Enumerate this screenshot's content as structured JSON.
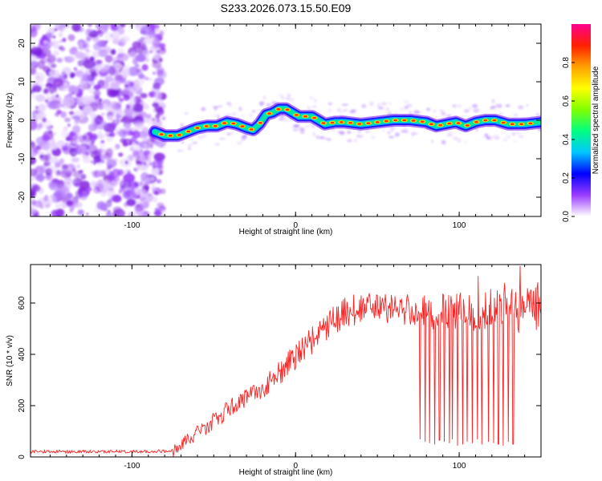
{
  "title": "S233.2026.073.15.50.E09",
  "chart_data": [
    {
      "type": "heatmap",
      "xlabel": "Height of straight line (km)",
      "ylabel": "Frequency (Hz)",
      "xlim": [
        -162,
        150
      ],
      "ylim": [
        -25,
        25
      ],
      "xticks": [
        -100,
        0,
        100
      ],
      "yticks": [
        -20,
        -10,
        0,
        10,
        20
      ],
      "xtick_labels": [
        "-100",
        "0",
        "100"
      ],
      "ytick_labels": [
        "-20",
        "-10",
        "0",
        "10",
        "20"
      ],
      "noise_region_x": [
        -162,
        -80
      ],
      "ridge": {
        "x": [
          -86,
          -80,
          -72,
          -66,
          -60,
          -54,
          -48,
          -42,
          -36,
          -30,
          -26,
          -22,
          -18,
          -14,
          -10,
          -6,
          -2,
          2,
          6,
          10,
          14,
          18,
          24,
          30,
          40,
          50,
          60,
          70,
          80,
          86,
          92,
          98,
          104,
          110,
          116,
          122,
          130,
          140,
          150
        ],
        "freq": [
          -3,
          -4,
          -4,
          -3,
          -2,
          -1.5,
          -1.5,
          -0.5,
          -1,
          -2,
          -2.5,
          -1,
          1.5,
          2,
          3,
          3,
          2,
          1,
          1,
          1,
          0,
          -1,
          -0.5,
          -0.5,
          -1,
          -0.5,
          0,
          0,
          -0.5,
          -1.5,
          -1,
          -0.5,
          -1.5,
          -0.5,
          0,
          0,
          -1,
          -1,
          -0.5
        ]
      },
      "colorbar": {
        "label": "Normalized spectral amplitude",
        "range": [
          0,
          1
        ],
        "ticks": [
          "0.0",
          "0.2",
          "0.4",
          "0.6",
          "0.8"
        ],
        "tick_values": [
          0,
          0.2,
          0.4,
          0.6,
          0.8
        ],
        "colors": [
          "#ffffff",
          "#9a3cff",
          "#0000ff",
          "#00c8ff",
          "#00ff80",
          "#80ff00",
          "#ffff00",
          "#ffa000",
          "#ff2000",
          "#ff0090"
        ]
      }
    },
    {
      "type": "line",
      "xlabel": "Height of straight line (km)",
      "ylabel": "SNR (10 * v/v)",
      "xlim": [
        -162,
        150
      ],
      "ylim": [
        0,
        750
      ],
      "xticks": [
        -100,
        0,
        100
      ],
      "yticks": [
        0,
        200,
        400,
        600
      ],
      "xtick_labels": [
        "-100",
        "0",
        "100"
      ],
      "ytick_labels": [
        "0",
        "200",
        "400",
        "600"
      ],
      "series": [
        {
          "name": "SNR",
          "color": "#ff2020",
          "x": [
            -162,
            -150,
            -140,
            -130,
            -120,
            -110,
            -100,
            -90,
            -80,
            -74,
            -70,
            -66,
            -62,
            -58,
            -54,
            -50,
            -46,
            -42,
            -38,
            -34,
            -30,
            -26,
            -22,
            -18,
            -14,
            -10,
            -6,
            -2,
            2,
            6,
            10,
            14,
            18,
            22,
            26,
            30,
            34,
            38,
            42,
            46,
            50,
            56,
            62,
            70,
            80,
            90,
            100,
            110,
            120,
            130,
            140,
            150
          ],
          "y": [
            20,
            22,
            20,
            21,
            20,
            22,
            21,
            22,
            23,
            28,
            40,
            70,
            85,
            100,
            120,
            140,
            160,
            180,
            205,
            220,
            230,
            240,
            255,
            280,
            300,
            330,
            350,
            380,
            405,
            430,
            455,
            475,
            500,
            520,
            545,
            560,
            570,
            575,
            580,
            585,
            585,
            580,
            575,
            570,
            565,
            565,
            565,
            570,
            575,
            570,
            575,
            575
          ],
          "dropouts_x": [
            76,
            79,
            82,
            85,
            88,
            91,
            94,
            96,
            99,
            102,
            105,
            108,
            111,
            114,
            118,
            121,
            124,
            127,
            130,
            133
          ],
          "dropouts_y": [
            70,
            60,
            55,
            50,
            65,
            60,
            55,
            70,
            45,
            50,
            60,
            55,
            70,
            50,
            60,
            55,
            50,
            45,
            60,
            50
          ]
        }
      ]
    }
  ]
}
